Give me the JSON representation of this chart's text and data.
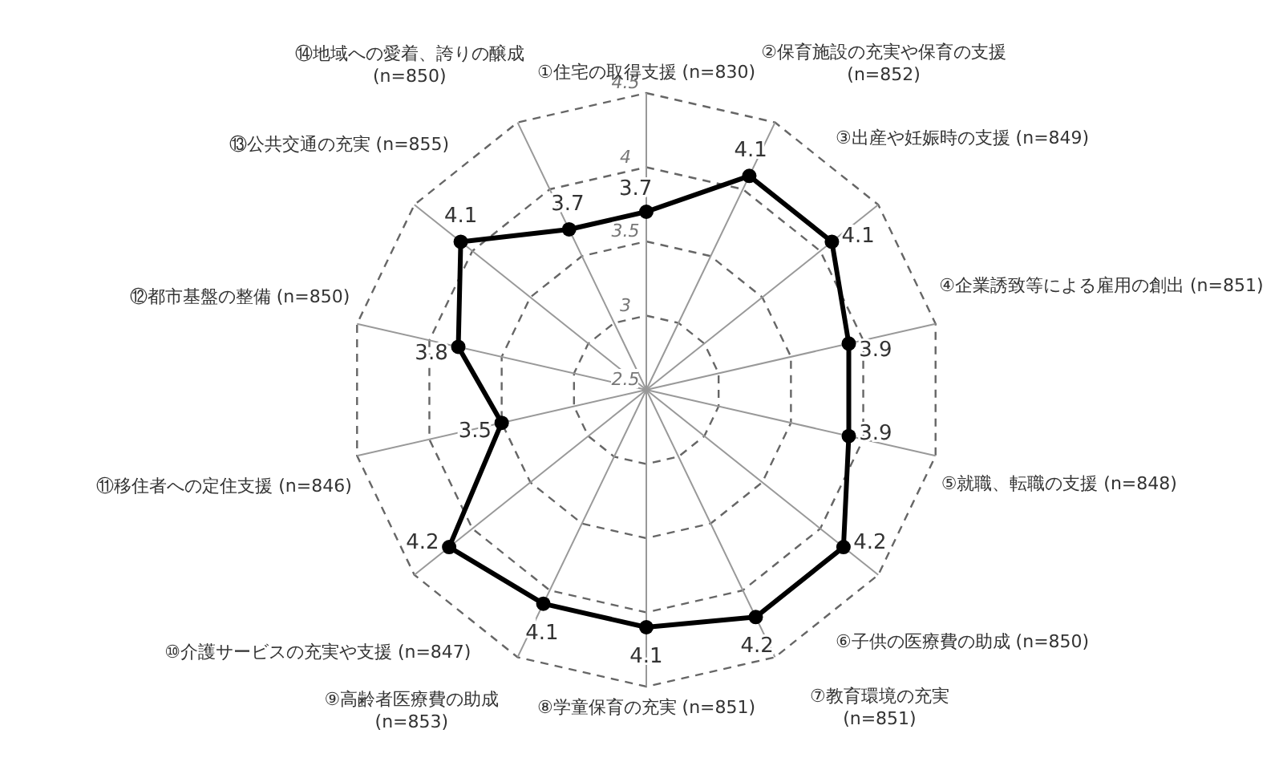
{
  "chart_data": {
    "type": "radar",
    "categories": [
      "①住宅の取得支援 (n=830)",
      "②保育施設の充実や保育の支援 (n=852)",
      "③出産や妊娠時の支援 (n=849)",
      "④企業誘致等による雇用の創出 (n=851)",
      "⑤就職、転職の支援 (n=848)",
      "⑥子供の医療費の助成 (n=850)",
      "⑦教育環境の充実 (n=851)",
      "⑧学童保育の充実 (n=851)",
      "⑨高齢者医療費の助成 (n=853)",
      "⑩介護サービスの充実や支援 (n=847)",
      "⑪移住者への定住支援 (n=846)",
      "⑫都市基盤の整備 (n=850)",
      "⑬公共交通の充実 (n=855)",
      "⑭地域への愛着、誇りの醸成 (n=850)"
    ],
    "series": [
      {
        "color": "#000000",
        "values": [
          3.7,
          4.1,
          4.1,
          3.9,
          3.9,
          4.2,
          4.2,
          4.1,
          4.1,
          4.2,
          3.5,
          3.8,
          4.1,
          3.7
        ]
      }
    ],
    "ylim": [
      2.5,
      4.5
    ],
    "yticks": [
      2.5,
      3,
      3.5,
      4,
      4.5
    ],
    "grid": true,
    "marker": "circle",
    "line_style": "solid",
    "data_labels": true
  }
}
